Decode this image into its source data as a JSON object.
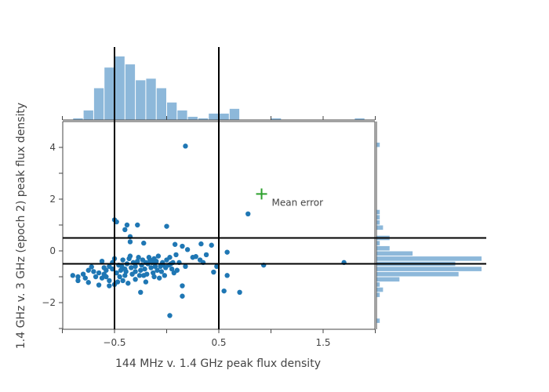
{
  "chart_data": {
    "type": "scatter",
    "xlabel": "144 MHz v. 1.4 GHz peak flux density",
    "ylabel": "1.4 GHz v. 3 GHz (epoch 2) peak flux density",
    "xlim": [
      -1.0,
      2.0
    ],
    "ylim": [
      -3.0,
      5.0
    ],
    "x_ticks": [
      -0.5,
      0.5,
      1.5
    ],
    "x_tick_labels": [
      "−0.5",
      "0.5",
      "1.5"
    ],
    "y_ticks": [
      -2,
      0,
      2,
      4
    ],
    "y_tick_labels": [
      "−2",
      "0",
      "2",
      "4"
    ],
    "grid": false,
    "colors": {
      "points": "#1f77b4",
      "histogram": "#8db8da",
      "threshold_lines": "#000000",
      "mean_error_marker": "#2ca02c",
      "axis": "#444444"
    },
    "threshold_lines": {
      "x": [
        -0.5,
        0.5
      ],
      "y": [
        -0.5,
        0.5
      ]
    },
    "mean_error": {
      "x": 0.91,
      "y": 2.2,
      "label": "Mean error"
    },
    "series": [
      {
        "values": [
          [
            0.18,
            4.05
          ],
          [
            0.78,
            1.43
          ],
          [
            1.7,
            -0.45
          ],
          [
            0.93,
            -0.55
          ],
          [
            0.03,
            -2.5
          ],
          [
            0.15,
            -1.75
          ],
          [
            0.55,
            -1.55
          ],
          [
            0.7,
            -1.6
          ],
          [
            -0.5,
            1.2
          ],
          [
            -0.48,
            1.12
          ],
          [
            -0.38,
            1.0
          ],
          [
            -0.28,
            1.0
          ],
          [
            -0.4,
            0.82
          ],
          [
            -0.35,
            0.55
          ],
          [
            -0.35,
            0.35
          ],
          [
            -0.22,
            0.3
          ],
          [
            0.0,
            0.95
          ],
          [
            0.33,
            0.27
          ],
          [
            0.43,
            0.22
          ],
          [
            0.08,
            0.25
          ],
          [
            0.15,
            0.18
          ],
          [
            0.2,
            0.05
          ],
          [
            0.58,
            -0.05
          ],
          [
            0.38,
            -0.15
          ],
          [
            0.28,
            -0.22
          ],
          [
            0.32,
            -0.35
          ],
          [
            0.12,
            -0.45
          ],
          [
            0.04,
            -0.5
          ],
          [
            0.35,
            -0.45
          ],
          [
            0.25,
            -0.25
          ],
          [
            0.48,
            -0.6
          ],
          [
            0.58,
            -0.95
          ],
          [
            0.45,
            -0.82
          ],
          [
            0.18,
            -0.6
          ],
          [
            0.15,
            -1.35
          ],
          [
            -0.25,
            -1.6
          ],
          [
            -0.5,
            -1.3
          ],
          [
            -0.55,
            -1.35
          ],
          [
            -0.65,
            -1.32
          ],
          [
            -0.75,
            -1.22
          ],
          [
            -0.85,
            -1.15
          ],
          [
            -0.85,
            -1.0
          ],
          [
            -0.9,
            -0.95
          ],
          [
            -0.8,
            -0.9
          ],
          [
            -0.75,
            -0.75
          ],
          [
            -0.7,
            -0.8
          ],
          [
            -0.68,
            -1.0
          ],
          [
            -0.62,
            -1.05
          ],
          [
            -0.6,
            -0.9
          ],
          [
            -0.58,
            -0.75
          ],
          [
            -0.55,
            -0.6
          ],
          [
            -0.52,
            -0.45
          ],
          [
            -0.5,
            -0.3
          ],
          [
            -0.48,
            -0.85
          ],
          [
            -0.45,
            -1.0
          ],
          [
            -0.42,
            -1.15
          ],
          [
            -0.4,
            -0.7
          ],
          [
            -0.38,
            -0.5
          ],
          [
            -0.36,
            -0.3
          ],
          [
            -0.35,
            -0.2
          ],
          [
            -0.33,
            -0.9
          ],
          [
            -0.3,
            -1.1
          ],
          [
            -0.3,
            -0.6
          ],
          [
            -0.28,
            -0.4
          ],
          [
            -0.25,
            -0.75
          ],
          [
            -0.22,
            -0.95
          ],
          [
            -0.2,
            -1.2
          ],
          [
            -0.18,
            -0.5
          ],
          [
            -0.17,
            -0.25
          ],
          [
            -0.15,
            -0.65
          ],
          [
            -0.13,
            -0.85
          ],
          [
            -0.12,
            -1.0
          ],
          [
            -0.1,
            -0.4
          ],
          [
            -0.08,
            -0.2
          ],
          [
            -0.06,
            -0.6
          ],
          [
            -0.05,
            -0.8
          ],
          [
            -0.02,
            -0.95
          ],
          [
            0.0,
            -0.35
          ],
          [
            0.02,
            -0.55
          ],
          [
            0.05,
            -0.7
          ],
          [
            0.07,
            -0.85
          ],
          [
            0.09,
            -0.15
          ],
          [
            -0.62,
            -0.4
          ],
          [
            -0.6,
            -0.65
          ],
          [
            -0.65,
            -0.85
          ],
          [
            -0.72,
            -0.62
          ],
          [
            -0.78,
            -1.05
          ],
          [
            -0.55,
            -1.15
          ],
          [
            -0.46,
            -0.55
          ],
          [
            -0.44,
            -0.75
          ],
          [
            -0.42,
            -0.35
          ],
          [
            -0.4,
            -0.95
          ],
          [
            -0.37,
            -1.25
          ],
          [
            -0.32,
            -0.45
          ],
          [
            -0.3,
            -0.8
          ],
          [
            -0.27,
            -0.25
          ],
          [
            -0.24,
            -0.55
          ],
          [
            -0.21,
            -0.7
          ],
          [
            -0.19,
            -0.9
          ],
          [
            -0.16,
            -0.35
          ],
          [
            -0.14,
            -0.45
          ],
          [
            -0.11,
            -0.6
          ],
          [
            -0.09,
            -0.75
          ],
          [
            -0.07,
            -1.05
          ],
          [
            -0.04,
            -0.45
          ],
          [
            -0.01,
            -0.65
          ],
          [
            0.03,
            -0.25
          ],
          [
            0.1,
            -0.75
          ],
          [
            -0.58,
            -1.0
          ],
          [
            -0.52,
            -0.7
          ],
          [
            -0.47,
            -1.2
          ],
          [
            -0.43,
            -0.6
          ],
          [
            -0.39,
            -0.8
          ],
          [
            -0.34,
            -0.65
          ],
          [
            -0.26,
            -0.95
          ],
          [
            -0.23,
            -0.35
          ],
          [
            -0.2,
            -0.45
          ],
          [
            -0.12,
            -0.3
          ],
          [
            -0.03,
            -0.55
          ],
          [
            0.06,
            -0.45
          ]
        ]
      }
    ],
    "x_histogram": {
      "bin_start": -1.0,
      "bin_width": 0.1,
      "counts": [
        0,
        1,
        6,
        20,
        33,
        40,
        35,
        25,
        26,
        20,
        11,
        6,
        2,
        1,
        4,
        4,
        7,
        0,
        0,
        0,
        1,
        0,
        0,
        0,
        0,
        0,
        0,
        0,
        1,
        0
      ]
    },
    "y_histogram": {
      "bin_start": -3.0,
      "bin_width": 0.2,
      "counts": [
        0,
        1,
        0,
        0,
        0,
        0,
        1,
        2,
        1,
        7,
        25,
        32,
        24,
        32,
        11,
        4,
        1,
        4,
        0,
        2,
        1,
        1,
        1,
        0,
        0,
        0,
        0,
        0,
        0,
        0,
        0,
        0,
        0,
        0,
        0,
        1,
        0,
        0,
        0,
        0
      ]
    }
  }
}
